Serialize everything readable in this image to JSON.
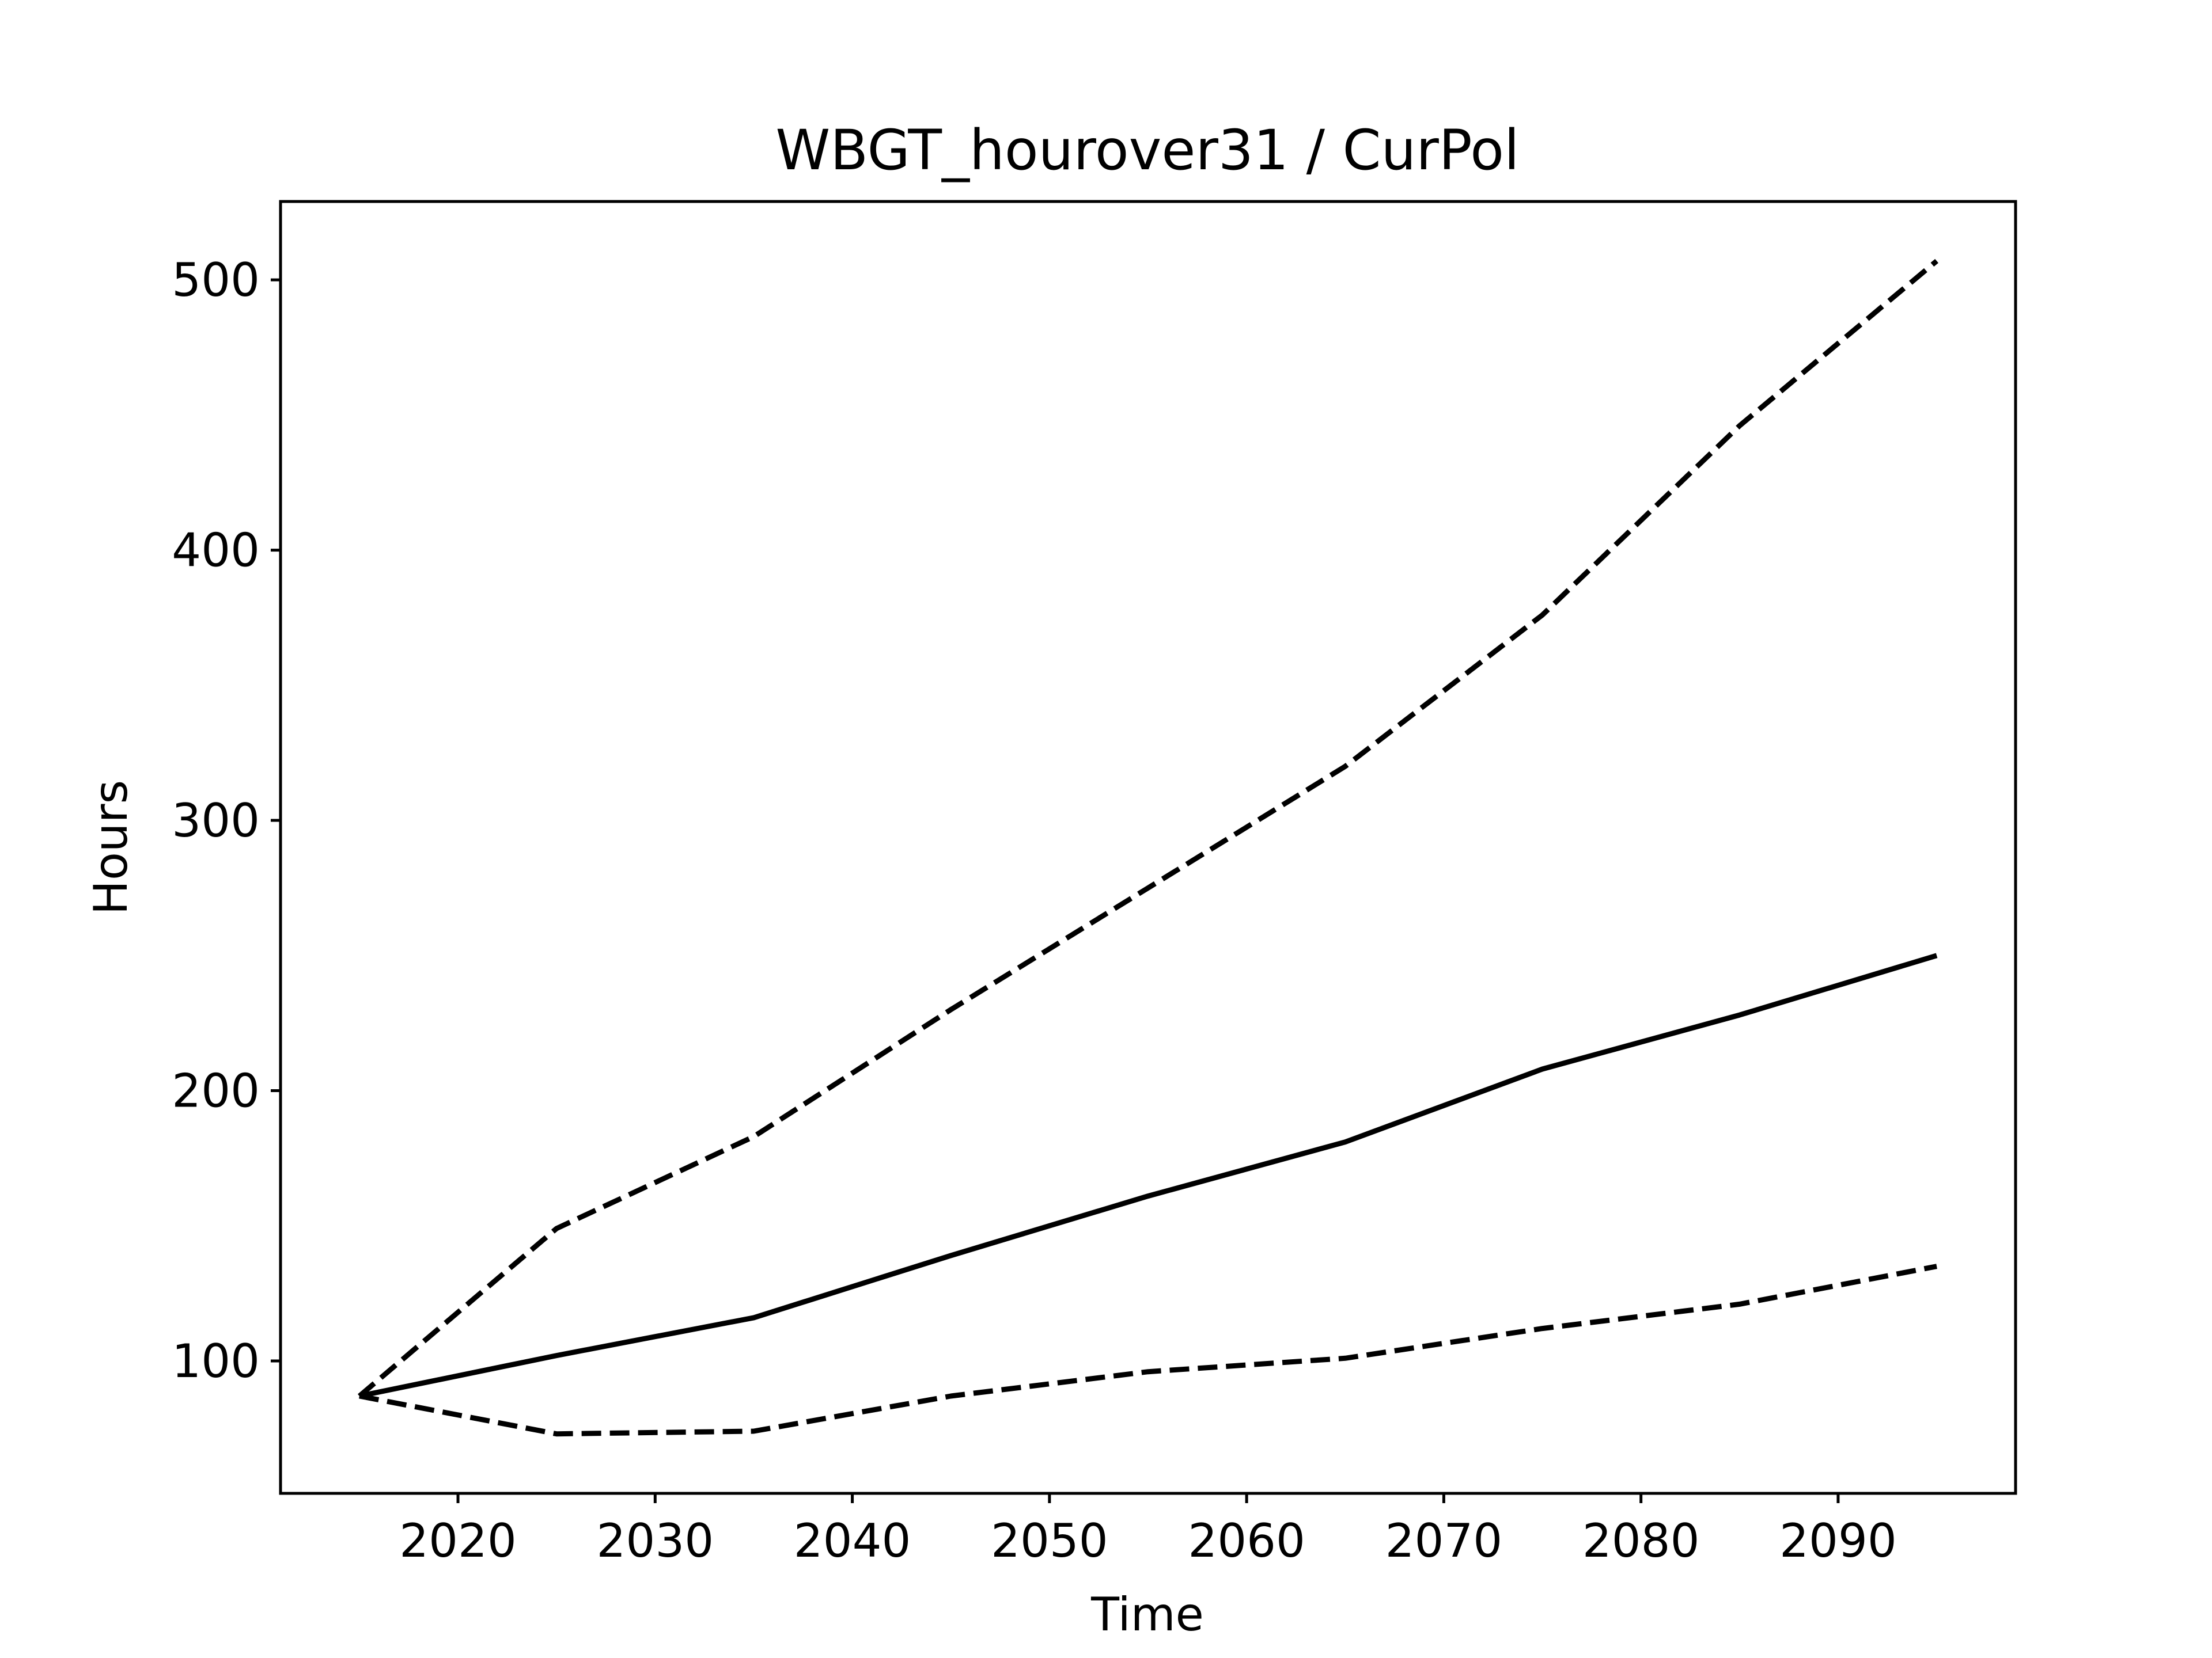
{
  "chart_data": {
    "type": "line",
    "title": "WBGT_hourover31 / CurPol",
    "xlabel": "Time",
    "ylabel": "Hours",
    "xlim": [
      2011,
      2099
    ],
    "ylim": [
      51,
      529
    ],
    "xticks": [
      2020,
      2030,
      2040,
      2050,
      2060,
      2070,
      2080,
      2090
    ],
    "yticks": [
      100,
      200,
      300,
      400,
      500
    ],
    "x": [
      2015,
      2025,
      2035,
      2045,
      2055,
      2065,
      2075,
      2085,
      2095
    ],
    "series": [
      {
        "style": "dashed",
        "values": [
          87,
          149,
          183,
          230,
          275,
          320,
          376,
          446,
          507
        ]
      },
      {
        "style": "solid",
        "values": [
          87,
          102,
          116,
          139,
          161,
          181,
          208,
          228,
          250
        ]
      },
      {
        "style": "dashed",
        "values": [
          87,
          73,
          74,
          87,
          96,
          101,
          112,
          121,
          135
        ]
      }
    ],
    "grid": false,
    "legend": "none",
    "line_color": "#000000"
  }
}
